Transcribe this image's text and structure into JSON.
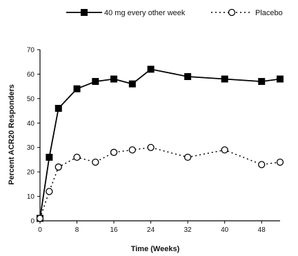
{
  "chart_data": {
    "type": "line",
    "xlabel": "Time (Weeks)",
    "ylabel": "Percent ACR20 Responders",
    "xlim": [
      0,
      52
    ],
    "ylim": [
      0,
      70
    ],
    "xticks": [
      0,
      8,
      16,
      24,
      32,
      40,
      48
    ],
    "yticks": [
      0,
      10,
      20,
      30,
      40,
      50,
      60,
      70
    ],
    "grid": false,
    "legend_position": "top",
    "series": [
      {
        "name": "40 mg every other week",
        "style": "solid",
        "marker": "filled-square",
        "color": "#000000",
        "points": [
          [
            0,
            1
          ],
          [
            2,
            26
          ],
          [
            4,
            46
          ],
          [
            8,
            54
          ],
          [
            12,
            57
          ],
          [
            16,
            58
          ],
          [
            20,
            56
          ],
          [
            24,
            62
          ],
          [
            32,
            59
          ],
          [
            40,
            58
          ],
          [
            48,
            57
          ],
          [
            52,
            58
          ]
        ]
      },
      {
        "name": "Placebo",
        "style": "dotted",
        "marker": "open-circle",
        "color": "#000000",
        "points": [
          [
            0,
            1
          ],
          [
            2,
            12
          ],
          [
            4,
            22
          ],
          [
            8,
            26
          ],
          [
            12,
            24
          ],
          [
            16,
            28
          ],
          [
            20,
            29
          ],
          [
            24,
            30
          ],
          [
            32,
            26
          ],
          [
            40,
            29
          ],
          [
            48,
            23
          ],
          [
            52,
            24
          ]
        ]
      }
    ]
  }
}
